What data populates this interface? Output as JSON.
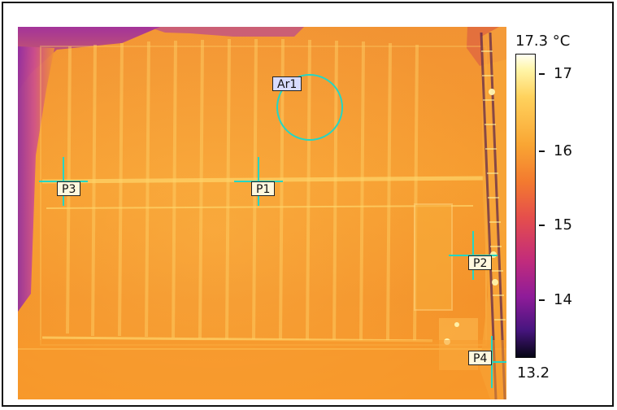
{
  "image": {
    "subject": "infrared thermal image of a building facade with measurement markers",
    "colors": {
      "frame": "#111111",
      "crosshair": "#24d6c4",
      "area_circle": "#24d6c4",
      "hot": "#fff5a8",
      "cool": "#050514"
    }
  },
  "scale": {
    "max_label": "17.3 °C",
    "min_label": "13.2",
    "ticks": [
      "17",
      "16",
      "15",
      "14"
    ]
  },
  "markers": {
    "area": "Ar1",
    "points": [
      "P1",
      "P2",
      "P3",
      "P4"
    ]
  }
}
